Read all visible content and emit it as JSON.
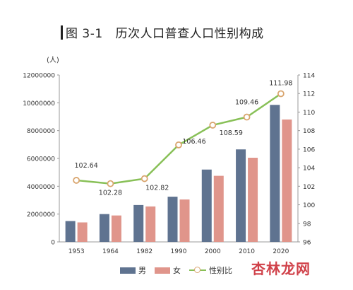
{
  "header": {
    "figure_label": "图 3-1",
    "title": "历次人口普查人口性别构成",
    "unit": "(人)"
  },
  "watermark": "杏林龙网",
  "colors": {
    "male": "#5f7390",
    "female": "#e0958b",
    "line": "#88c057",
    "marker": "#d9a56e"
  },
  "chart_data": {
    "type": "bar",
    "title": "历次人口普查人口性别构成",
    "categories": [
      "1953",
      "1964",
      "1982",
      "1990",
      "2000",
      "2010",
      "2020"
    ],
    "series": [
      {
        "name": "男",
        "type": "bar",
        "axis": "left",
        "values": [
          1500000,
          2000000,
          2650000,
          3250000,
          5200000,
          6650000,
          9850000
        ]
      },
      {
        "name": "女",
        "type": "bar",
        "axis": "left",
        "values": [
          1400000,
          1900000,
          2550000,
          3050000,
          4750000,
          6050000,
          8800000
        ]
      },
      {
        "name": "性别比",
        "type": "line",
        "axis": "right",
        "values": [
          102.64,
          102.28,
          102.82,
          106.46,
          108.59,
          109.46,
          111.98
        ],
        "labels": [
          "102.64",
          "102.28",
          "102.82",
          "106.46",
          "108.59",
          "109.46",
          "111.98"
        ]
      }
    ],
    "y_left": {
      "min": 0,
      "max": 12000000,
      "ticks": [
        "0",
        "2000000",
        "4000000",
        "6000000",
        "8000000",
        "10000000",
        "12000000"
      ]
    },
    "y_right": {
      "min": 96,
      "max": 114,
      "ticks": [
        "96",
        "98",
        "100",
        "102",
        "104",
        "106",
        "108",
        "110",
        "112",
        "114"
      ]
    },
    "grid": false,
    "legend_position": "bottom"
  }
}
